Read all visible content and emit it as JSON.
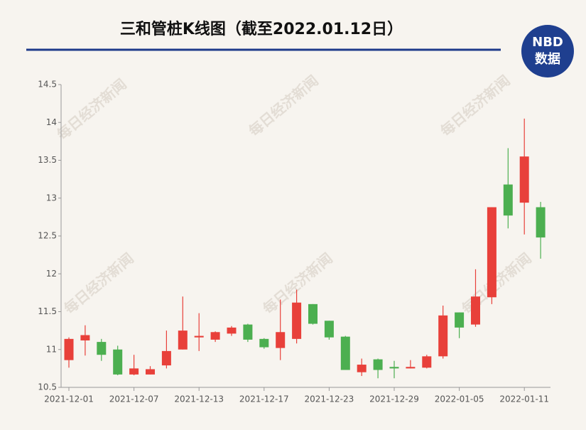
{
  "chart_data": {
    "type": "candlestick",
    "title": "三和管桩K线图（截至2022.01.12日）",
    "logo": {
      "top": "NBD",
      "bottom": "数据"
    },
    "watermark": "每日经济新闻",
    "categories": [
      "2021-12-01",
      null,
      null,
      null,
      "2021-12-07",
      null,
      null,
      null,
      "2021-12-13",
      null,
      null,
      null,
      "2021-12-17",
      null,
      null,
      null,
      "2021-12-23",
      null,
      null,
      null,
      "2021-12-29",
      null,
      null,
      null,
      "2022-01-05",
      null,
      null,
      null,
      "2022-01-11",
      null
    ],
    "open": [
      10.86,
      11.12,
      11.1,
      11.0,
      10.67,
      10.67,
      10.79,
      11.0,
      11.16,
      11.13,
      11.21,
      11.33,
      11.14,
      11.02,
      11.14,
      11.6,
      11.38,
      11.17,
      10.7,
      10.87,
      10.77,
      10.75,
      10.76,
      10.91,
      11.49,
      11.33,
      11.69,
      13.18,
      12.94,
      12.88
    ],
    "high": [
      11.16,
      11.32,
      11.14,
      11.05,
      10.93,
      10.78,
      11.25,
      11.7,
      11.48,
      11.24,
      11.31,
      11.34,
      11.15,
      11.66,
      11.79,
      11.6,
      11.38,
      11.18,
      10.88,
      10.88,
      10.85,
      10.86,
      10.93,
      11.58,
      11.49,
      12.06,
      12.88,
      13.66,
      14.05,
      12.95
    ],
    "low": [
      10.76,
      10.92,
      10.85,
      10.66,
      10.66,
      10.67,
      10.75,
      11.0,
      10.98,
      11.1,
      11.18,
      11.1,
      11.01,
      10.86,
      11.08,
      11.33,
      11.13,
      10.73,
      10.65,
      10.62,
      10.62,
      10.75,
      10.75,
      10.88,
      11.15,
      11.3,
      11.6,
      12.6,
      12.52,
      12.2
    ],
    "close": [
      11.14,
      11.19,
      10.93,
      10.67,
      10.75,
      10.74,
      10.98,
      11.25,
      11.18,
      11.23,
      11.29,
      11.13,
      11.03,
      11.23,
      11.62,
      11.34,
      11.16,
      10.73,
      10.8,
      10.73,
      10.75,
      10.77,
      10.91,
      11.45,
      11.29,
      11.7,
      12.88,
      12.77,
      13.55,
      12.48
    ],
    "up_color": "#e8403a",
    "down_color": "#4caf50",
    "ylim": [
      10.5,
      14.5
    ],
    "yticks": [
      10.5,
      11,
      11.5,
      12,
      12.5,
      13,
      13.5,
      14,
      14.5
    ],
    "grid": false
  }
}
